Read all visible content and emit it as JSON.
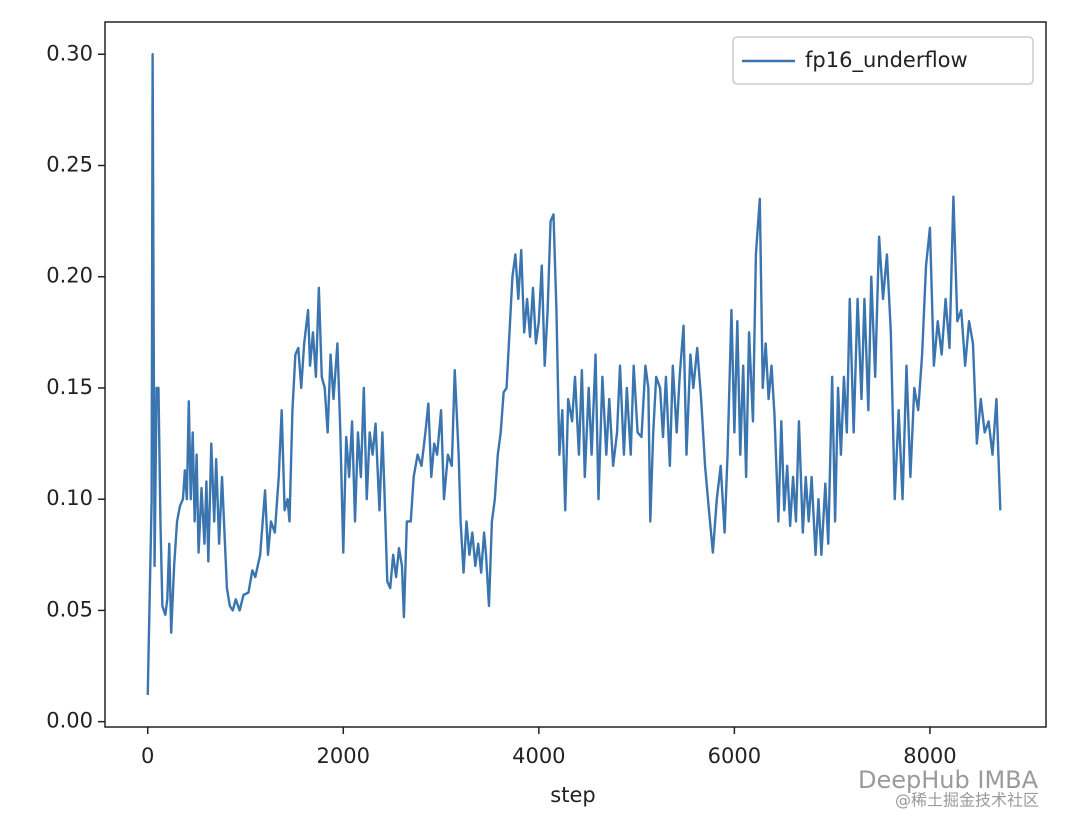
{
  "chart_data": {
    "type": "line",
    "x_label": "step",
    "legend": "upper right",
    "xlim": [
      -437,
      9187
    ],
    "ylim": [
      -0.0024,
      0.3145
    ],
    "xticks": [
      0,
      2000,
      4000,
      6000,
      8000
    ],
    "yticks": [
      {
        "value": 0,
        "label": "0.00"
      },
      0.05,
      {
        "value": 0.1,
        "label": "0.10"
      },
      0.15,
      {
        "value": 0.2,
        "label": "0.20"
      },
      0.25,
      {
        "value": 0.3,
        "label": "0.30"
      }
    ],
    "x": [
      0,
      40,
      50,
      70,
      90,
      110,
      130,
      150,
      180,
      200,
      220,
      240,
      270,
      300,
      330,
      360,
      380,
      400,
      420,
      440,
      460,
      480,
      500,
      520,
      550,
      580,
      600,
      620,
      650,
      680,
      700,
      730,
      760,
      790,
      810,
      840,
      870,
      900,
      940,
      980,
      1030,
      1070,
      1100,
      1150,
      1200,
      1230,
      1260,
      1300,
      1340,
      1370,
      1400,
      1430,
      1450,
      1480,
      1510,
      1540,
      1570,
      1600,
      1640,
      1660,
      1690,
      1720,
      1750,
      1780,
      1810,
      1840,
      1870,
      1900,
      1940,
      1970,
      2000,
      2030,
      2060,
      2090,
      2120,
      2150,
      2180,
      2210,
      2240,
      2270,
      2300,
      2330,
      2370,
      2400,
      2420,
      2450,
      2480,
      2510,
      2540,
      2570,
      2600,
      2620,
      2650,
      2690,
      2720,
      2760,
      2800,
      2840,
      2870,
      2900,
      2930,
      2960,
      3000,
      3030,
      3070,
      3110,
      3140,
      3180,
      3200,
      3230,
      3260,
      3290,
      3320,
      3350,
      3380,
      3410,
      3440,
      3460,
      3490,
      3520,
      3550,
      3580,
      3610,
      3640,
      3670,
      3700,
      3730,
      3760,
      3790,
      3820,
      3850,
      3880,
      3910,
      3940,
      3970,
      4000,
      4030,
      4060,
      4090,
      4120,
      4150,
      4180,
      4210,
      4240,
      4270,
      4300,
      4340,
      4370,
      4410,
      4440,
      4470,
      4510,
      4540,
      4580,
      4610,
      4650,
      4690,
      4720,
      4760,
      4800,
      4830,
      4870,
      4900,
      4940,
      4970,
      5010,
      5050,
      5090,
      5120,
      5140,
      5170,
      5200,
      5240,
      5270,
      5300,
      5340,
      5370,
      5410,
      5440,
      5480,
      5510,
      5550,
      5580,
      5620,
      5660,
      5700,
      5740,
      5780,
      5820,
      5860,
      5900,
      5930,
      5970,
      6000,
      6030,
      6060,
      6090,
      6120,
      6150,
      6190,
      6220,
      6260,
      6290,
      6320,
      6350,
      6380,
      6410,
      6450,
      6480,
      6510,
      6540,
      6570,
      6600,
      6630,
      6660,
      6700,
      6730,
      6760,
      6790,
      6830,
      6860,
      6890,
      6930,
      6960,
      7000,
      7030,
      7060,
      7090,
      7120,
      7150,
      7180,
      7220,
      7260,
      7300,
      7330,
      7370,
      7400,
      7440,
      7480,
      7520,
      7560,
      7600,
      7640,
      7680,
      7720,
      7760,
      7800,
      7840,
      7880,
      7920,
      7960,
      8000,
      8040,
      8080,
      8120,
      8160,
      8200,
      8240,
      8280,
      8320,
      8360,
      8400,
      8440,
      8480,
      8520,
      8560,
      8600,
      8640,
      8680,
      8720
    ],
    "series": [
      {
        "name": "fp16_underflow",
        "color": "#3b75af",
        "values": [
          0.012,
          0.1,
          0.3,
          0.07,
          0.15,
          0.15,
          0.09,
          0.052,
          0.048,
          0.055,
          0.08,
          0.04,
          0.07,
          0.09,
          0.097,
          0.1,
          0.113,
          0.1,
          0.144,
          0.1,
          0.13,
          0.09,
          0.12,
          0.076,
          0.105,
          0.08,
          0.108,
          0.072,
          0.125,
          0.09,
          0.118,
          0.08,
          0.11,
          0.08,
          0.06,
          0.052,
          0.05,
          0.055,
          0.05,
          0.057,
          0.058,
          0.068,
          0.065,
          0.075,
          0.104,
          0.075,
          0.09,
          0.085,
          0.11,
          0.14,
          0.095,
          0.1,
          0.09,
          0.14,
          0.165,
          0.168,
          0.15,
          0.17,
          0.185,
          0.16,
          0.175,
          0.155,
          0.195,
          0.155,
          0.15,
          0.13,
          0.165,
          0.145,
          0.17,
          0.13,
          0.076,
          0.128,
          0.11,
          0.135,
          0.09,
          0.13,
          0.11,
          0.15,
          0.1,
          0.13,
          0.12,
          0.134,
          0.095,
          0.13,
          0.105,
          0.063,
          0.06,
          0.075,
          0.065,
          0.078,
          0.07,
          0.047,
          0.09,
          0.09,
          0.11,
          0.12,
          0.115,
          0.13,
          0.143,
          0.11,
          0.125,
          0.12,
          0.14,
          0.1,
          0.12,
          0.115,
          0.158,
          0.12,
          0.09,
          0.067,
          0.09,
          0.075,
          0.085,
          0.07,
          0.08,
          0.067,
          0.085,
          0.075,
          0.052,
          0.09,
          0.1,
          0.12,
          0.13,
          0.148,
          0.15,
          0.175,
          0.2,
          0.21,
          0.19,
          0.212,
          0.175,
          0.19,
          0.173,
          0.195,
          0.17,
          0.18,
          0.205,
          0.16,
          0.185,
          0.225,
          0.228,
          0.185,
          0.12,
          0.14,
          0.095,
          0.145,
          0.135,
          0.155,
          0.12,
          0.158,
          0.11,
          0.15,
          0.12,
          0.165,
          0.1,
          0.155,
          0.12,
          0.145,
          0.115,
          0.13,
          0.16,
          0.12,
          0.15,
          0.12,
          0.16,
          0.13,
          0.128,
          0.16,
          0.15,
          0.09,
          0.13,
          0.155,
          0.15,
          0.128,
          0.155,
          0.115,
          0.16,
          0.13,
          0.155,
          0.178,
          0.12,
          0.165,
          0.15,
          0.168,
          0.145,
          0.115,
          0.095,
          0.076,
          0.1,
          0.115,
          0.085,
          0.12,
          0.185,
          0.13,
          0.18,
          0.12,
          0.16,
          0.11,
          0.175,
          0.135,
          0.21,
          0.235,
          0.15,
          0.17,
          0.145,
          0.16,
          0.138,
          0.09,
          0.135,
          0.095,
          0.115,
          0.088,
          0.11,
          0.09,
          0.135,
          0.085,
          0.11,
          0.09,
          0.11,
          0.075,
          0.1,
          0.075,
          0.107,
          0.08,
          0.155,
          0.09,
          0.15,
          0.12,
          0.155,
          0.13,
          0.19,
          0.13,
          0.19,
          0.145,
          0.19,
          0.14,
          0.2,
          0.155,
          0.218,
          0.19,
          0.21,
          0.175,
          0.1,
          0.14,
          0.1,
          0.16,
          0.11,
          0.15,
          0.14,
          0.165,
          0.205,
          0.222,
          0.16,
          0.18,
          0.165,
          0.19,
          0.168,
          0.236,
          0.18,
          0.185,
          0.16,
          0.18,
          0.17,
          0.125,
          0.145,
          0.13,
          0.135,
          0.12,
          0.145,
          0.095
        ]
      }
    ]
  },
  "watermark": {
    "brand": "DeepHub IMBA",
    "source": "@稀土掘金技术社区"
  }
}
